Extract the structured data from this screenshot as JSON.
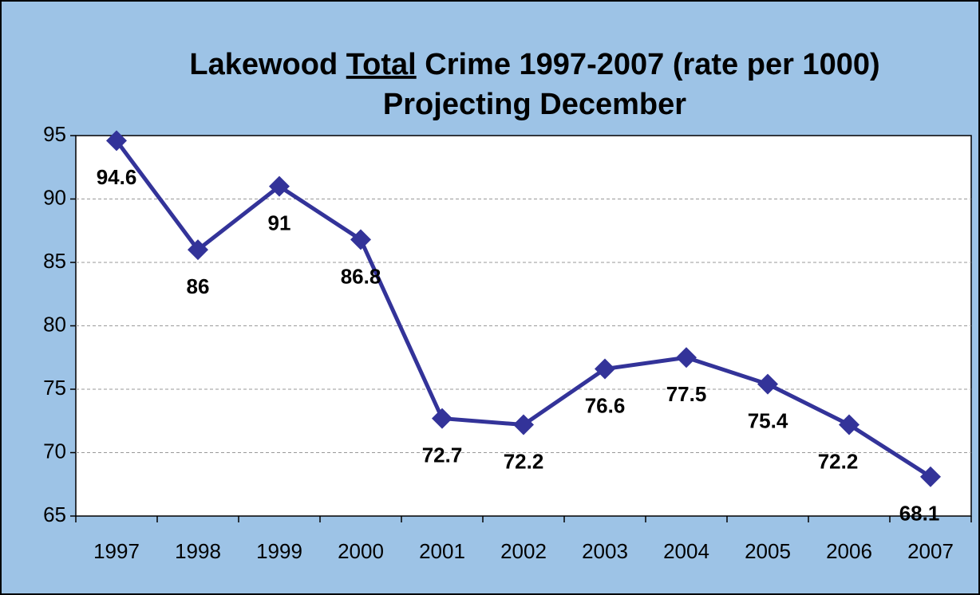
{
  "chart_data": {
    "type": "line",
    "title": {
      "before": "Lakewood",
      "underlined": "Total",
      "after": "Crime 1997-2007 (rate per 1000)"
    },
    "subtitle": "Projecting December",
    "categories": [
      "1997",
      "1998",
      "1999",
      "2000",
      "2001",
      "2002",
      "2003",
      "2004",
      "2005",
      "2006",
      "2007"
    ],
    "values": [
      94.6,
      86,
      91,
      86.8,
      72.7,
      72.2,
      76.6,
      77.5,
      75.4,
      72.2,
      68.1
    ],
    "color": "#333399",
    "ylim": [
      65,
      95
    ],
    "yticks": [
      65,
      70,
      75,
      80,
      85,
      90,
      95
    ],
    "grid": true
  }
}
